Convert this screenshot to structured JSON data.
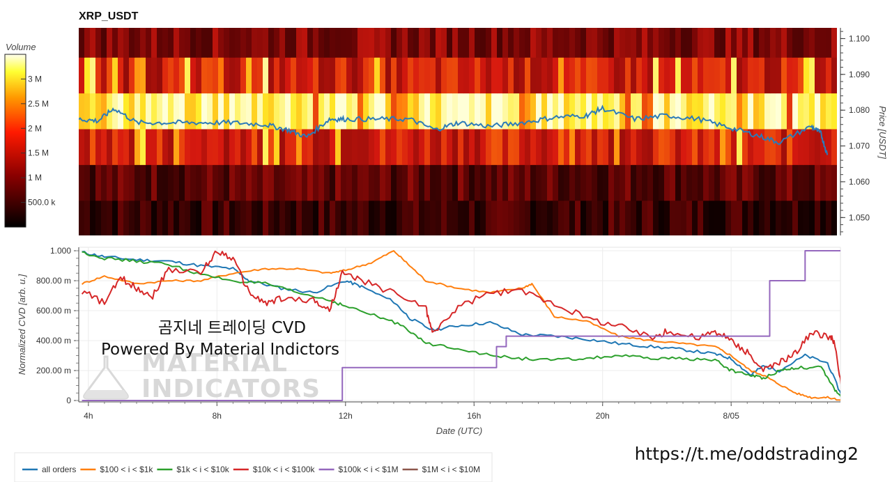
{
  "heatmap": {
    "title": "XRP_USDT",
    "colorbar_label": "Volume",
    "colorbar_ticks": [
      {
        "label": "500.0 k",
        "value": 500000
      },
      {
        "label": "1 M",
        "value": 1000000
      },
      {
        "label": "1.5 M",
        "value": 1500000
      },
      {
        "label": "2 M",
        "value": 2000000
      },
      {
        "label": "2.5 M",
        "value": 2500000
      },
      {
        "label": "3 M",
        "value": 3000000
      }
    ],
    "price_axis_label": "Price [USDT]",
    "price_ticks": [
      "1.050",
      "1.060",
      "1.070",
      "1.080",
      "1.090",
      "1.100"
    ],
    "colors": {
      "low": "#000000",
      "mid": "#ff0000",
      "high": "#ffff00",
      "top": "#ffffff",
      "price_line": "#2b7bb9"
    }
  },
  "cvd": {
    "y_axis_label": "Normalized CVD [arb. u.]",
    "y_ticks": [
      "0",
      "200.00 m",
      "400.00 m",
      "600.00 m",
      "800.00 m",
      "1.000"
    ],
    "x_axis_label": "Date (UTC)",
    "x_ticks": [
      "4h",
      "8h",
      "12h",
      "16h",
      "20h",
      "8/05"
    ]
  },
  "chart_data": [
    {
      "type": "heatmap",
      "title": "XRP_USDT",
      "ylabel": "Price [USDT]",
      "ylim": [
        1.045,
        1.103
      ],
      "price_bands": [
        1.05,
        1.06,
        1.07,
        1.08,
        1.09,
        1.1
      ],
      "band_base_intensity": [
        0.12,
        0.2,
        0.5,
        0.92,
        0.48,
        0.3
      ],
      "price_line": {
        "hours": [
          3.7,
          4.3,
          4.8,
          5.5,
          6.5,
          7.5,
          8.5,
          9.5,
          10.2,
          10.8,
          11.5,
          12.0,
          13.0,
          14.0,
          14.8,
          15.5,
          16.5,
          17.5,
          18.5,
          19.5,
          20.0,
          21.0,
          22.0,
          23.0,
          24.0,
          24.8,
          25.5,
          26.5,
          26.8,
          27.0
        ],
        "price": [
          1.0775,
          1.077,
          1.0805,
          1.0765,
          1.0765,
          1.0765,
          1.0765,
          1.076,
          1.0745,
          1.0725,
          1.0775,
          1.0775,
          1.0775,
          1.0775,
          1.0745,
          1.0765,
          1.0755,
          1.0765,
          1.078,
          1.0785,
          1.0805,
          1.0775,
          1.0785,
          1.0775,
          1.075,
          1.073,
          1.071,
          1.0755,
          1.0735,
          1.0675
        ]
      }
    },
    {
      "type": "line",
      "xlabel": "Date (UTC)",
      "ylabel": "Normalized CVD [arb. u.]",
      "xlim": [
        3.8,
        27.5
      ],
      "ylim": [
        0,
        1
      ],
      "series": [
        {
          "name": "all orders",
          "color": "#1f77b4",
          "x": [
            3.8,
            4.5,
            5.5,
            6.5,
            7.5,
            8.5,
            9.0,
            10.0,
            11.0,
            12.0,
            12.5,
            13.5,
            14.0,
            14.7,
            15.5,
            16.5,
            17.5,
            18.5,
            19.5,
            20.5,
            21.5,
            22.5,
            23.5,
            24.0,
            24.6,
            25.0,
            25.5,
            26.3,
            27.0,
            27.5
          ],
          "y": [
            0.99,
            0.96,
            0.94,
            0.93,
            0.9,
            0.88,
            0.8,
            0.75,
            0.72,
            0.8,
            0.76,
            0.66,
            0.55,
            0.47,
            0.5,
            0.52,
            0.44,
            0.43,
            0.41,
            0.38,
            0.36,
            0.34,
            0.31,
            0.28,
            0.17,
            0.23,
            0.2,
            0.3,
            0.25,
            0.0
          ]
        },
        {
          "name": "$100 < i < $1k",
          "color": "#ff7f0e",
          "x": [
            3.8,
            4.5,
            5.5,
            6.5,
            7.5,
            8.5,
            9.5,
            10.5,
            11.5,
            12.0,
            12.8,
            13.5,
            14.0,
            14.5,
            15.5,
            16.5,
            17.5,
            17.8,
            18.5,
            19.5,
            20.5,
            21.5,
            22.5,
            23.5,
            24.0,
            24.6,
            25.0,
            25.4,
            26.0,
            26.5,
            27.0,
            27.5
          ],
          "y": [
            0.78,
            0.83,
            0.78,
            0.8,
            0.8,
            0.85,
            0.88,
            0.88,
            0.85,
            0.87,
            0.92,
            1.0,
            0.9,
            0.8,
            0.75,
            0.72,
            0.75,
            0.78,
            0.56,
            0.53,
            0.43,
            0.4,
            0.38,
            0.36,
            0.3,
            0.2,
            0.17,
            0.12,
            0.05,
            0.02,
            0.02,
            0.0
          ]
        },
        {
          "name": "$1k < i < $10k",
          "color": "#2ca02c",
          "x": [
            3.8,
            4.5,
            5.5,
            6.5,
            7.5,
            8.5,
            9.5,
            10.5,
            11.5,
            12.0,
            13.0,
            13.8,
            14.5,
            15.5,
            16.5,
            17.5,
            18.5,
            19.5,
            20.5,
            21.5,
            22.5,
            23.5,
            24.0,
            24.6,
            25.0,
            25.5,
            26.0,
            26.8,
            27.2,
            27.5
          ],
          "y": [
            0.99,
            0.95,
            0.93,
            0.91,
            0.84,
            0.8,
            0.78,
            0.72,
            0.67,
            0.63,
            0.56,
            0.5,
            0.38,
            0.35,
            0.3,
            0.28,
            0.27,
            0.28,
            0.3,
            0.28,
            0.28,
            0.27,
            0.2,
            0.17,
            0.15,
            0.2,
            0.22,
            0.22,
            0.08,
            0.0
          ]
        },
        {
          "name": "$10k < i < $100k",
          "color": "#d62728",
          "x": [
            3.8,
            4.5,
            5.0,
            5.5,
            6.0,
            6.5,
            7.5,
            8.0,
            8.5,
            9.0,
            9.5,
            10.0,
            11.0,
            11.5,
            11.9,
            12.5,
            13.5,
            14.5,
            14.7,
            15.5,
            16.5,
            17.5,
            18.5,
            19.5,
            20.5,
            21.5,
            22.0,
            23.0,
            23.5,
            24.0,
            24.5,
            25.0,
            25.5,
            26.0,
            26.5,
            27.0,
            27.2,
            27.5
          ],
          "y": [
            0.73,
            0.65,
            0.82,
            0.75,
            0.7,
            0.88,
            0.85,
            1.0,
            0.95,
            0.72,
            0.65,
            0.68,
            0.67,
            0.6,
            0.85,
            0.8,
            0.72,
            0.62,
            0.45,
            0.62,
            0.72,
            0.73,
            0.65,
            0.55,
            0.5,
            0.42,
            0.46,
            0.42,
            0.46,
            0.4,
            0.32,
            0.2,
            0.25,
            0.32,
            0.45,
            0.43,
            0.4,
            0.0
          ]
        },
        {
          "name": "$100k < i < $1M",
          "color": "#9467bd",
          "x": [
            3.8,
            11.9,
            11.9,
            16.7,
            16.7,
            17.0,
            17.0,
            25.2,
            25.2,
            26.3,
            26.3,
            27.5
          ],
          "y": [
            0.0,
            0.0,
            0.22,
            0.22,
            0.36,
            0.36,
            0.43,
            0.43,
            0.8,
            0.8,
            1.0,
            1.0
          ]
        },
        {
          "name": "$1M < i < $10M",
          "color": "#8c564b",
          "x": [],
          "y": []
        }
      ]
    }
  ],
  "overlay": {
    "line1": "곰지네 트레이딩 CVD",
    "line2": "Powered By Material Indictors",
    "watermark_line1": "MATERIAL",
    "watermark_line2": "INDICATORS"
  },
  "legend": {
    "items": [
      {
        "label": "all orders",
        "color": "#1f77b4"
      },
      {
        "label": "$100 < i < $1k",
        "color": "#ff7f0e"
      },
      {
        "label": "$1k < i < $10k",
        "color": "#2ca02c"
      },
      {
        "label": "$10k < i < $100k",
        "color": "#d62728"
      },
      {
        "label": "$100k < i < $1M",
        "color": "#9467bd"
      },
      {
        "label": "$1M < i < $10M",
        "color": "#8c564b"
      }
    ]
  },
  "footer": {
    "url": "https://t.me/oddstrading2"
  }
}
